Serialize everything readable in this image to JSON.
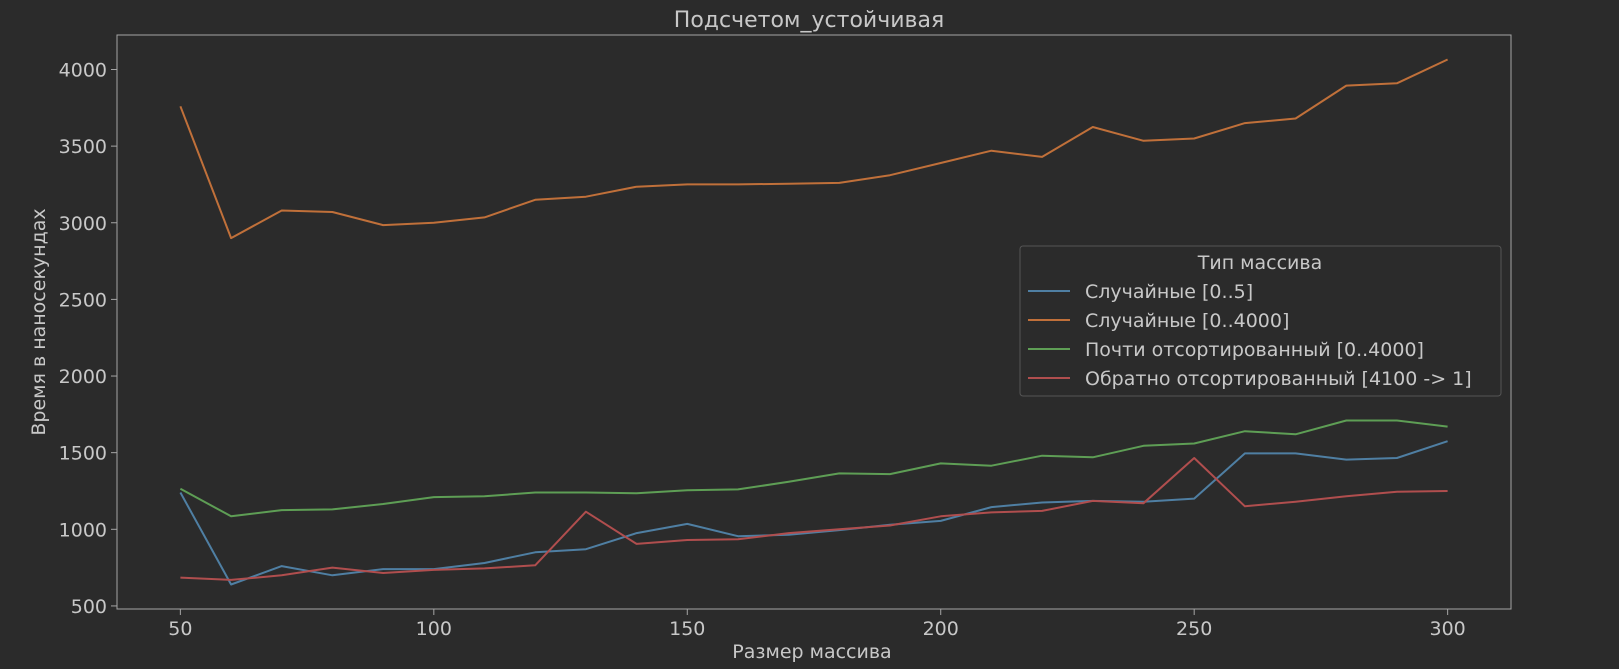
{
  "chart_data": {
    "type": "line",
    "title": "Подсчетом_устойчивая",
    "xlabel": "Размер массива",
    "ylabel": "Время в наносекундах",
    "xlim": [
      37.5,
      312.5
    ],
    "ylim": [
      480,
      4225
    ],
    "xticks": [
      50,
      100,
      150,
      200,
      250,
      300
    ],
    "yticks": [
      500,
      1000,
      1500,
      2000,
      2500,
      3000,
      3500,
      4000
    ],
    "grid": false,
    "background_color": "#2b2b2b",
    "text_color": "#c8c8c8",
    "legend": {
      "title": "Тип массива",
      "placement": "center-right"
    },
    "x": [
      50,
      60,
      70,
      80,
      90,
      100,
      110,
      120,
      130,
      140,
      150,
      160,
      170,
      180,
      190,
      200,
      210,
      220,
      230,
      240,
      250,
      260,
      270,
      280,
      290,
      300
    ],
    "series": [
      {
        "name": "Случайные [0..5]",
        "color": "#4f7fa3",
        "values": [
          1240,
          640,
          760,
          700,
          740,
          740,
          780,
          850,
          870,
          975,
          1035,
          955,
          965,
          995,
          1030,
          1055,
          1145,
          1175,
          1185,
          1180,
          1200,
          1495,
          1495,
          1455,
          1465,
          1575
        ]
      },
      {
        "name": "Случайные [0..4000]",
        "color": "#c0703a",
        "values": [
          3760,
          2900,
          3080,
          3070,
          2985,
          3000,
          3035,
          3150,
          3170,
          3235,
          3250,
          3250,
          3255,
          3260,
          3310,
          3390,
          3470,
          3430,
          3625,
          3535,
          3550,
          3650,
          3680,
          3895,
          3910,
          4065
        ]
      },
      {
        "name": "Почти отсортированный [0..4000]",
        "color": "#5e9e55",
        "values": [
          1265,
          1085,
          1125,
          1130,
          1165,
          1210,
          1215,
          1240,
          1240,
          1235,
          1255,
          1260,
          1310,
          1365,
          1360,
          1430,
          1415,
          1480,
          1470,
          1545,
          1560,
          1640,
          1620,
          1710,
          1710,
          1670
        ]
      },
      {
        "name": "Обратно отсортированный [4100 -> 1]",
        "color": "#b04e4e",
        "values": [
          685,
          670,
          700,
          750,
          715,
          735,
          745,
          765,
          1115,
          905,
          930,
          935,
          975,
          1000,
          1025,
          1085,
          1110,
          1120,
          1185,
          1170,
          1465,
          1150,
          1180,
          1215,
          1245,
          1250
        ]
      }
    ]
  }
}
